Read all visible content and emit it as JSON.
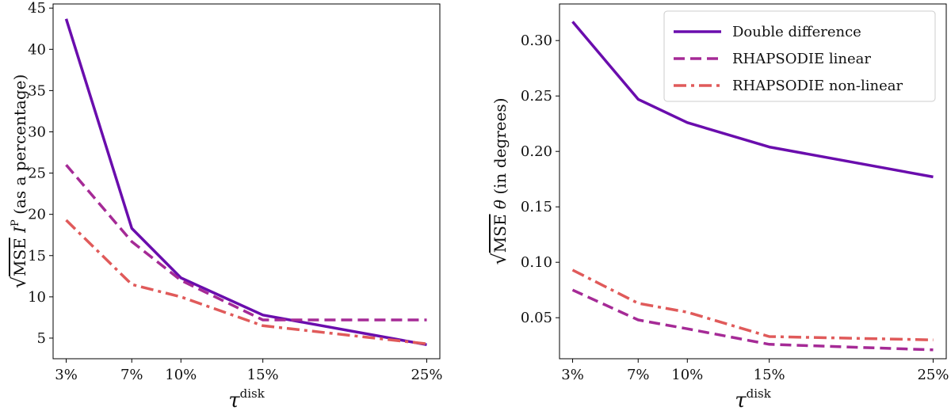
{
  "chart_data": [
    {
      "type": "line",
      "title": "",
      "xlabel": "τ^disk",
      "ylabel": "√MSE I^P (as a percentage)",
      "categories": [
        "3%",
        "7%",
        "10%",
        "15%",
        "25%"
      ],
      "x": [
        3,
        7,
        10,
        15,
        25
      ],
      "ylim": [
        2.5,
        45.5
      ],
      "yticks": [
        5,
        10,
        15,
        20,
        25,
        30,
        35,
        40,
        45
      ],
      "ytick_labels": [
        "5",
        "10",
        "15",
        "20",
        "25",
        "30",
        "35",
        "40",
        "45"
      ],
      "grid": false,
      "legend": false,
      "series": [
        {
          "name": "Double difference",
          "values": [
            43.7,
            18.3,
            12.3,
            7.8,
            4.2
          ],
          "color": "#6a0dad",
          "dash": "solid"
        },
        {
          "name": "RHAPSODIE linear",
          "values": [
            26.0,
            16.7,
            12.0,
            7.2,
            7.2
          ],
          "color": "#a52a96",
          "dash": "dashed"
        },
        {
          "name": "RHAPSODIE non-linear",
          "values": [
            19.3,
            11.5,
            10.0,
            6.5,
            4.3
          ],
          "color": "#e05a5a",
          "dash": "dashdot"
        }
      ]
    },
    {
      "type": "line",
      "title": "",
      "xlabel": "τ^disk",
      "ylabel": "√MSE θ (in degrees)",
      "categories": [
        "3%",
        "7%",
        "10%",
        "15%",
        "25%"
      ],
      "x": [
        3,
        7,
        10,
        15,
        25
      ],
      "ylim": [
        0.013,
        0.333
      ],
      "yticks": [
        0.05,
        0.1,
        0.15,
        0.2,
        0.25,
        0.3
      ],
      "ytick_labels": [
        "0.05",
        "0.10",
        "0.15",
        "0.20",
        "0.25",
        "0.30"
      ],
      "grid": false,
      "legend": "top-right",
      "series": [
        {
          "name": "Double difference",
          "values": [
            0.317,
            0.247,
            0.226,
            0.204,
            0.177
          ],
          "color": "#6a0dad",
          "dash": "solid"
        },
        {
          "name": "RHAPSODIE linear",
          "values": [
            0.075,
            0.048,
            0.04,
            0.026,
            0.021
          ],
          "color": "#a52a96",
          "dash": "dashed"
        },
        {
          "name": "RHAPSODIE non-linear",
          "values": [
            0.093,
            0.063,
            0.055,
            0.033,
            0.03
          ],
          "color": "#e05a5a",
          "dash": "dashdot"
        }
      ]
    }
  ],
  "xaxis_title": {
    "base": "τ",
    "sup": "disk"
  },
  "left_ylabel": {
    "root": "√",
    "over": "MSE",
    "sym": "I",
    "sup": "P",
    "rest": " (as a percentage)"
  },
  "right_ylabel": {
    "root": "√",
    "over": "MSE",
    "sym": "θ",
    "rest": " (in degrees)"
  }
}
